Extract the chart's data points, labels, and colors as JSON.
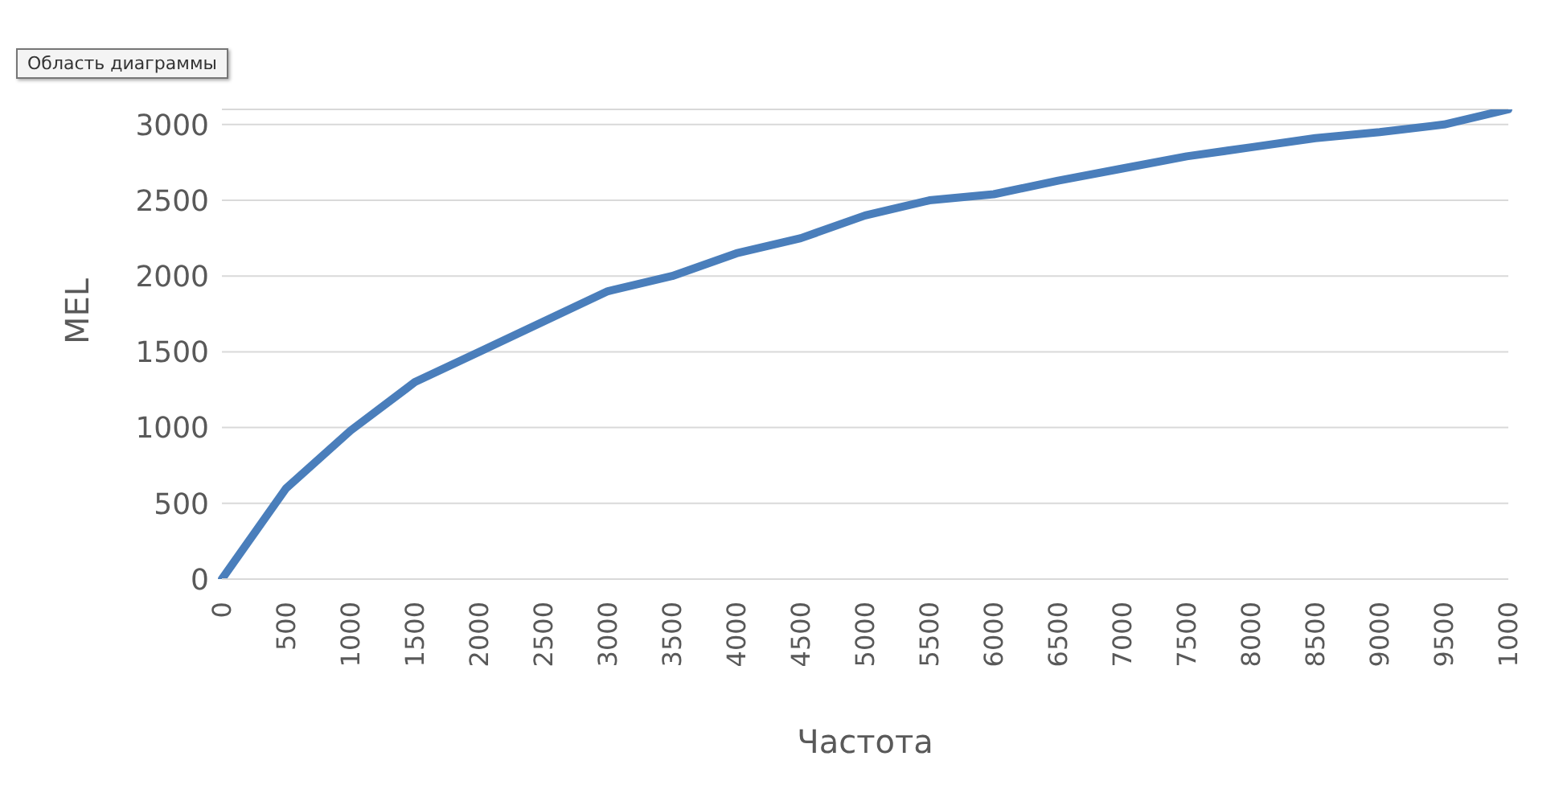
{
  "chart_data": {
    "type": "line",
    "xlabel": "Частота",
    "ylabel": "MEL",
    "categories": [
      "0",
      "500",
      "1000",
      "1500",
      "2000",
      "2500",
      "3000",
      "3500",
      "4000",
      "4500",
      "5000",
      "5500",
      "6000",
      "6500",
      "7000",
      "7500",
      "8000",
      "8500",
      "9000",
      "9500",
      "1000"
    ],
    "series": [
      {
        "color": "#4a7ebb",
        "values": [
          0,
          600,
          980,
          1300,
          1500,
          1700,
          1900,
          2000,
          2150,
          2250,
          2400,
          2500,
          2540,
          2630,
          2710,
          2790,
          2850,
          2910,
          2950,
          3000,
          3100
        ]
      }
    ],
    "ylim": [
      0,
      3100
    ],
    "yticks": [
      0,
      500,
      1000,
      1500,
      2000,
      2500,
      3000
    ],
    "grid": "y",
    "marker": "none",
    "line_style": "solid",
    "annotations": [
      "Область диаграммы"
    ]
  }
}
